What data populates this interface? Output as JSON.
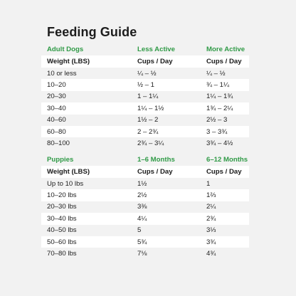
{
  "title": "Feeding Guide",
  "accent_color": "#2f9a46",
  "adult": {
    "category": "Adult Dogs",
    "level1": "Less Active",
    "level2": "More Active",
    "headers": [
      "Weight (LBS)",
      "Cups / Day",
      "Cups / Day"
    ],
    "rows": [
      [
        "10 or less",
        "¼ – ½",
        "¼ – ½"
      ],
      [
        "10–20",
        "½ – 1",
        "¾ – 1¼"
      ],
      [
        "20–30",
        "1 – 1¼",
        "1¼ – 1¾"
      ],
      [
        "30–40",
        "1¼ – 1½",
        "1¾ – 2¼"
      ],
      [
        "40–60",
        "1½ – 2",
        "2½ – 3"
      ],
      [
        "60–80",
        "2 – 2¾",
        "3 – 3¾"
      ],
      [
        "80–100",
        "2¾ – 3¼",
        "3¾ – 4½"
      ]
    ]
  },
  "puppies": {
    "category": "Puppies",
    "level1": "1–6 Months",
    "level2": "6–12 Months",
    "headers": [
      "Weight (LBS)",
      "Cups / Day",
      "Cups / Day"
    ],
    "rows": [
      [
        "Up to 10 lbs",
        "1½",
        "1"
      ],
      [
        "10–20 lbs",
        "2½",
        "1⅔"
      ],
      [
        "20–30 lbs",
        "3⅜",
        "2¼"
      ],
      [
        "30–40 lbs",
        "4¼",
        "2¾"
      ],
      [
        "40–50 lbs",
        "5",
        "3⅓"
      ],
      [
        "50–60 lbs",
        "5¾",
        "3¾"
      ],
      [
        "70–80 lbs",
        "7⅛",
        "4¾"
      ]
    ]
  }
}
